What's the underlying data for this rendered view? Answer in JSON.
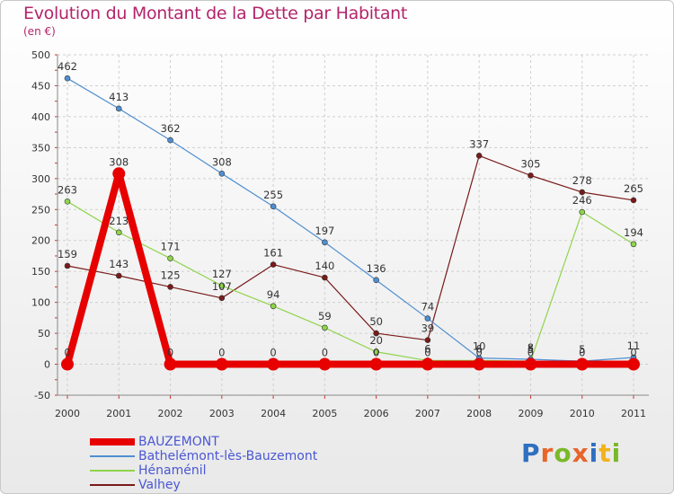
{
  "header": {
    "title": "Evolution du Montant de la Dette par Habitant",
    "unit": "(en €)"
  },
  "logo": {
    "text": "Proxiti",
    "letters": [
      {
        "ch": "P",
        "color": "#2e6fc0"
      },
      {
        "ch": "r",
        "color": "#e8652a"
      },
      {
        "ch": "o",
        "color": "#7ab829"
      },
      {
        "ch": "x",
        "color": "#e8652a"
      },
      {
        "ch": "i",
        "color": "#2e6fc0"
      },
      {
        "ch": "t",
        "color": "#f2b31b"
      },
      {
        "ch": "i",
        "color": "#7ab829"
      }
    ]
  },
  "chart_data": {
    "type": "line",
    "title": "Evolution du Montant de la Dette par Habitant",
    "ylabel": "(en €)",
    "xlabel": "",
    "ylim": [
      -50,
      500
    ],
    "ytick_step": 50,
    "categories": [
      "2000",
      "2001",
      "2002",
      "2003",
      "2004",
      "2005",
      "2006",
      "2007",
      "2008",
      "2009",
      "2010",
      "2011"
    ],
    "legend_position": "bottom-left",
    "series": [
      {
        "name": "BAUZEMONT",
        "color": "#e60000",
        "values": [
          0,
          308,
          0,
          0,
          0,
          0,
          0,
          0,
          0,
          0,
          0,
          0
        ],
        "labels": [
          "0",
          "308",
          "0",
          "0",
          "0",
          "0",
          "0",
          "0",
          "0",
          "0",
          "0",
          "0"
        ]
      },
      {
        "name": "Bathelémont-lès-Bauzemont",
        "color": "#4f8fd1",
        "values": [
          462,
          413,
          362,
          308,
          255,
          197,
          136,
          74,
          10,
          8,
          5,
          11
        ],
        "labels": [
          "462",
          "413",
          "362",
          "308",
          "255",
          "197",
          "136",
          "74",
          "10",
          "8",
          "5",
          "11"
        ]
      },
      {
        "name": "Hénaménil",
        "color": "#8fd44a",
        "values": [
          263,
          213,
          171,
          127,
          94,
          59,
          20,
          6,
          6,
          5,
          246,
          194
        ],
        "labels": [
          "263",
          "213",
          "171",
          "127",
          "94",
          "59",
          "20",
          "6",
          "6",
          "5",
          "246",
          "194"
        ]
      },
      {
        "name": "Valhey",
        "color": "#7a1a1a",
        "values": [
          159,
          143,
          125,
          107,
          161,
          140,
          50,
          39,
          337,
          305,
          278,
          265
        ],
        "labels": [
          "159",
          "143",
          "125",
          "107",
          "161",
          "140",
          "50",
          "39",
          "337",
          "305",
          "278",
          "265"
        ]
      }
    ]
  }
}
